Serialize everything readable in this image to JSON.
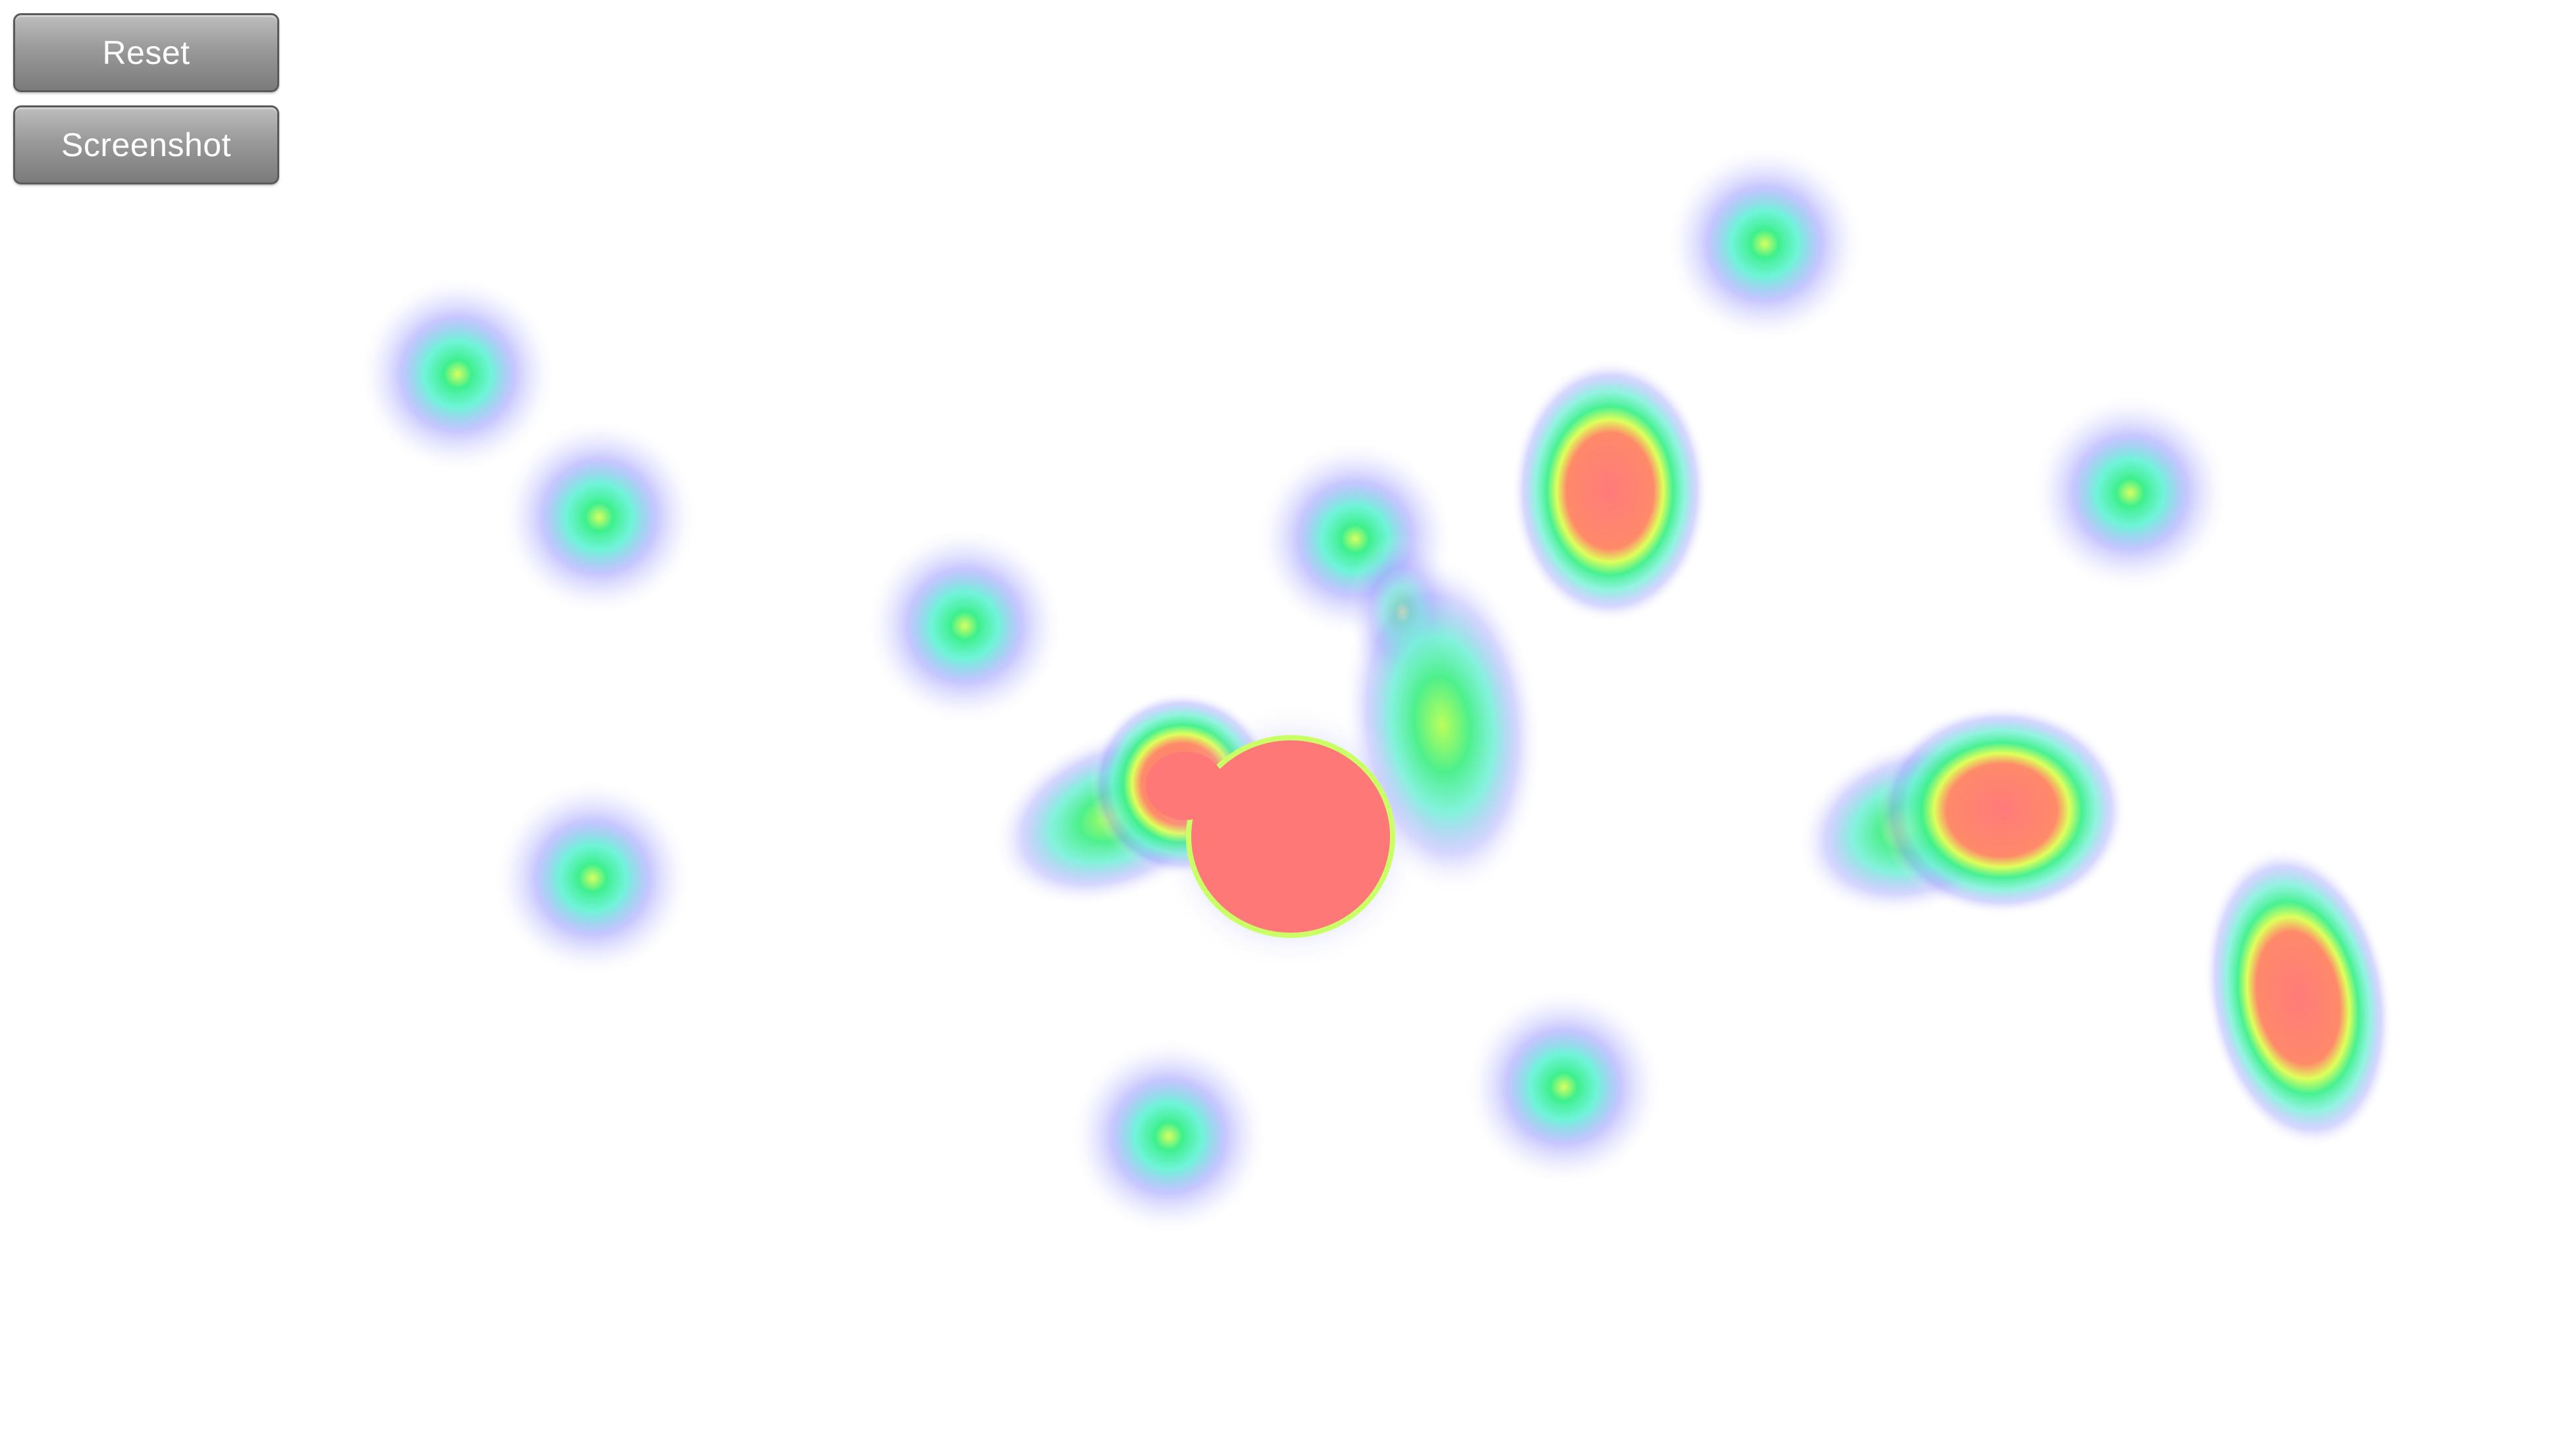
{
  "toolbar": {
    "reset_label": "Reset",
    "screenshot_label": "Screenshot"
  },
  "heatmap": {
    "palette": {
      "outer": "#8c8cff",
      "mid": "#2ff08c",
      "inner": "#c8ff50",
      "hot": "#ff7878"
    },
    "points": [
      {
        "name": "blob-1",
        "kind": "cool"
      },
      {
        "name": "blob-2",
        "kind": "cool"
      },
      {
        "name": "blob-3",
        "kind": "cool"
      },
      {
        "name": "blob-4",
        "kind": "cool"
      },
      {
        "name": "blob-5",
        "kind": "cool"
      },
      {
        "name": "blob-6",
        "kind": "cool"
      },
      {
        "name": "blob-7",
        "kind": "hot"
      },
      {
        "name": "blob-8",
        "kind": "warm"
      },
      {
        "name": "blob-9",
        "kind": "cool"
      },
      {
        "name": "blob-10",
        "kind": "cool"
      },
      {
        "name": "blob-11",
        "kind": "hot"
      },
      {
        "name": "blob-12",
        "kind": "hot"
      },
      {
        "name": "blob-13",
        "kind": "cool"
      },
      {
        "name": "blob-14",
        "kind": "hot"
      },
      {
        "name": "blob-15",
        "kind": "hot"
      }
    ]
  }
}
